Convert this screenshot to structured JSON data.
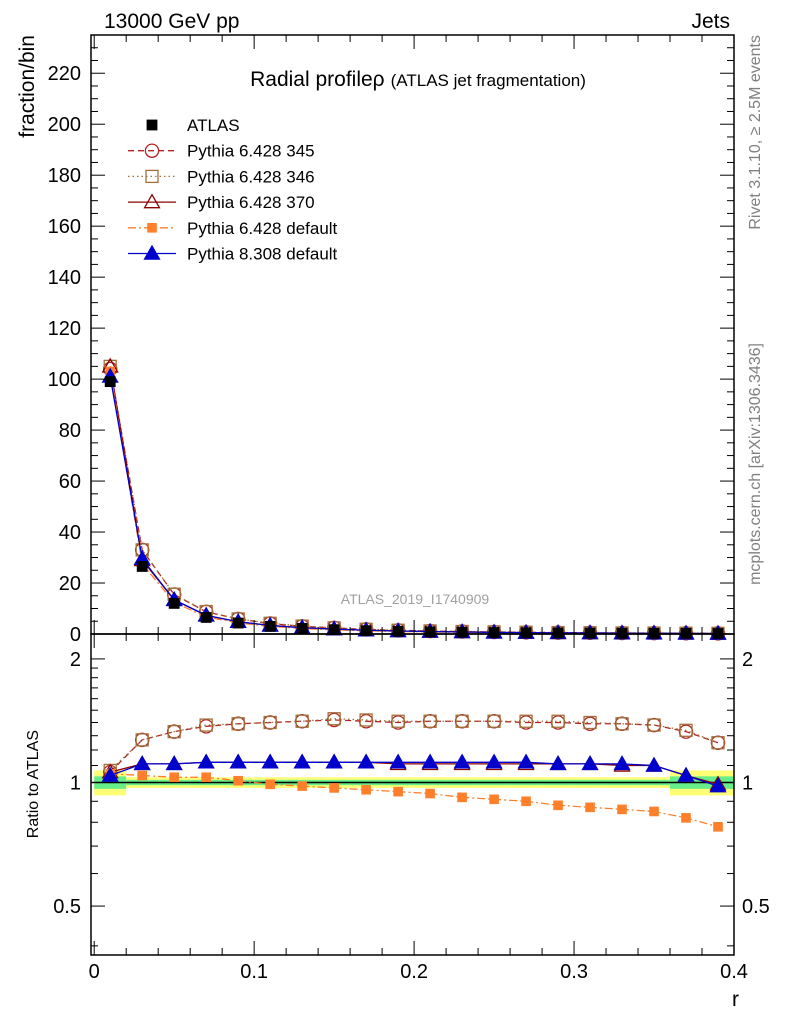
{
  "header": {
    "left": "13000 GeV pp",
    "right": "Jets"
  },
  "side_labels": {
    "rivet": "Rivet 3.1.10, ≥ 2.5M events",
    "mcplots": "mcplots.cern.ch [arXiv:1306.3436]"
  },
  "chart_data": {
    "type": "line",
    "title_main": "Radial profile",
    "title_symbol": "ρ",
    "title_sub": "(ATLAS jet fragmentation)",
    "watermark": "ATLAS_2019_I1740909",
    "xlabel": "r",
    "ylabel_top": "fraction/bin",
    "ylabel_bottom": "Ratio to ATLAS",
    "xlim": [
      -0.002,
      0.4
    ],
    "ylim_top": [
      0,
      235
    ],
    "ylim_bottom": [
      0.38,
      2.3
    ],
    "x_ticks": [
      "0",
      "0.1",
      "0.2",
      "0.3",
      "0.4"
    ],
    "y_ticks_top": [
      "0",
      "20",
      "40",
      "60",
      "80",
      "100",
      "120",
      "140",
      "160",
      "180",
      "200",
      "220"
    ],
    "y_ticks_bottom": [
      "0.5",
      "1",
      "2"
    ],
    "x": [
      0.01,
      0.03,
      0.05,
      0.07,
      0.09,
      0.11,
      0.13,
      0.15,
      0.17,
      0.19,
      0.21,
      0.23,
      0.25,
      0.27,
      0.29,
      0.31,
      0.33,
      0.35,
      0.37,
      0.39
    ],
    "data": {
      "name": "ATLAS",
      "values": [
        99,
        26.5,
        12,
        6.5,
        4.3,
        3.0,
        2.2,
        1.7,
        1.3,
        1.05,
        0.85,
        0.7,
        0.58,
        0.48,
        0.4,
        0.34,
        0.29,
        0.25,
        0.22,
        0.19
      ]
    },
    "series": [
      {
        "name": "Pythia 6.428 345",
        "color": "#b22222",
        "marker": "circle-open",
        "dash": "6,4",
        "values": [
          104,
          33,
          15.5,
          8.7,
          5.9,
          4.1,
          3.0,
          2.4,
          1.8,
          1.44,
          1.17,
          0.96,
          0.8,
          0.66,
          0.55,
          0.47,
          0.4,
          0.34,
          0.29,
          0.24
        ],
        "ratio": [
          1.06,
          1.27,
          1.33,
          1.37,
          1.39,
          1.4,
          1.41,
          1.42,
          1.41,
          1.4,
          1.41,
          1.41,
          1.41,
          1.4,
          1.4,
          1.39,
          1.39,
          1.38,
          1.33,
          1.25
        ]
      },
      {
        "name": "Pythia 6.428 346",
        "color": "#a0703a",
        "marker": "square-open",
        "dash": "1.5,3",
        "values": [
          105,
          33,
          15.6,
          8.8,
          5.9,
          4.2,
          3.1,
          2.4,
          1.84,
          1.47,
          1.19,
          0.98,
          0.82,
          0.68,
          0.56,
          0.48,
          0.4,
          0.35,
          0.29,
          0.24
        ],
        "ratio": [
          1.07,
          1.27,
          1.33,
          1.38,
          1.39,
          1.4,
          1.41,
          1.43,
          1.42,
          1.41,
          1.41,
          1.41,
          1.41,
          1.41,
          1.41,
          1.4,
          1.39,
          1.38,
          1.34,
          1.25
        ]
      },
      {
        "name": "Pythia 6.428 370",
        "color": "#8b0000",
        "marker": "triangle-open",
        "dash": "",
        "values": [
          105,
          29,
          13.4,
          7.3,
          4.8,
          3.4,
          2.45,
          1.9,
          1.46,
          1.17,
          0.95,
          0.79,
          0.65,
          0.54,
          0.45,
          0.38,
          0.32,
          0.28,
          0.23,
          0.19
        ],
        "ratio": [
          1.06,
          1.11,
          1.11,
          1.12,
          1.12,
          1.12,
          1.12,
          1.12,
          1.12,
          1.11,
          1.11,
          1.11,
          1.11,
          1.11,
          1.11,
          1.11,
          1.1,
          1.1,
          1.04,
          0.99
        ]
      },
      {
        "name": "Pythia 6.428 default",
        "color": "#ff7f2a",
        "marker": "square-filled",
        "dash": "8,3,2,3",
        "values": [
          103,
          27.5,
          12.4,
          6.7,
          4.35,
          3.0,
          2.15,
          1.65,
          1.26,
          0.99,
          0.8,
          0.64,
          0.52,
          0.43,
          0.35,
          0.29,
          0.24,
          0.21,
          0.18,
          0.15
        ],
        "ratio": [
          1.05,
          1.04,
          1.03,
          1.03,
          1.01,
          0.99,
          0.98,
          0.97,
          0.96,
          0.95,
          0.94,
          0.92,
          0.91,
          0.9,
          0.88,
          0.87,
          0.86,
          0.85,
          0.82,
          0.78
        ]
      },
      {
        "name": "Pythia 8.308 default",
        "color": "#0000cc",
        "marker": "triangle-filled",
        "dash": "",
        "values": [
          101,
          29.5,
          13.4,
          7.3,
          4.8,
          3.35,
          2.45,
          1.9,
          1.46,
          1.17,
          0.95,
          0.78,
          0.65,
          0.54,
          0.45,
          0.38,
          0.32,
          0.28,
          0.23,
          0.19
        ],
        "ratio": [
          1.04,
          1.11,
          1.11,
          1.12,
          1.12,
          1.12,
          1.12,
          1.12,
          1.12,
          1.12,
          1.12,
          1.12,
          1.12,
          1.12,
          1.11,
          1.11,
          1.11,
          1.1,
          1.04,
          0.98
        ]
      }
    ]
  }
}
